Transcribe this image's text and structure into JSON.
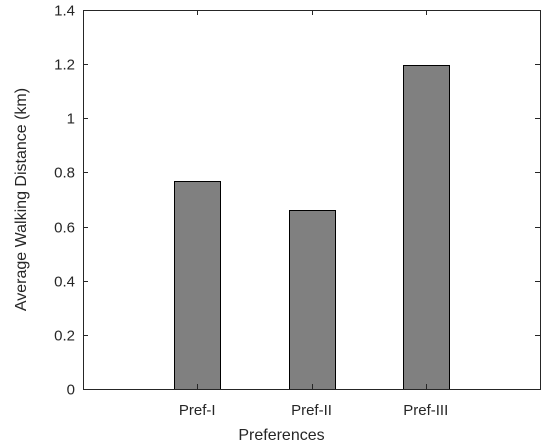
{
  "chart_data": {
    "type": "bar",
    "categories": [
      "Pref-I",
      "Pref-II",
      "Pref-III"
    ],
    "values": [
      0.77,
      0.66,
      1.195
    ],
    "xlabel": "Preferences",
    "ylabel": "Average Walking Distance (km)",
    "ylim": [
      0,
      1.4
    ],
    "yticks": [
      "0",
      "0.2",
      "0.4",
      "0.6",
      "0.8",
      "1",
      "1.2",
      "1.4"
    ],
    "grid": false,
    "bar_color": "#808080",
    "bar_edge_color": "#000000"
  }
}
